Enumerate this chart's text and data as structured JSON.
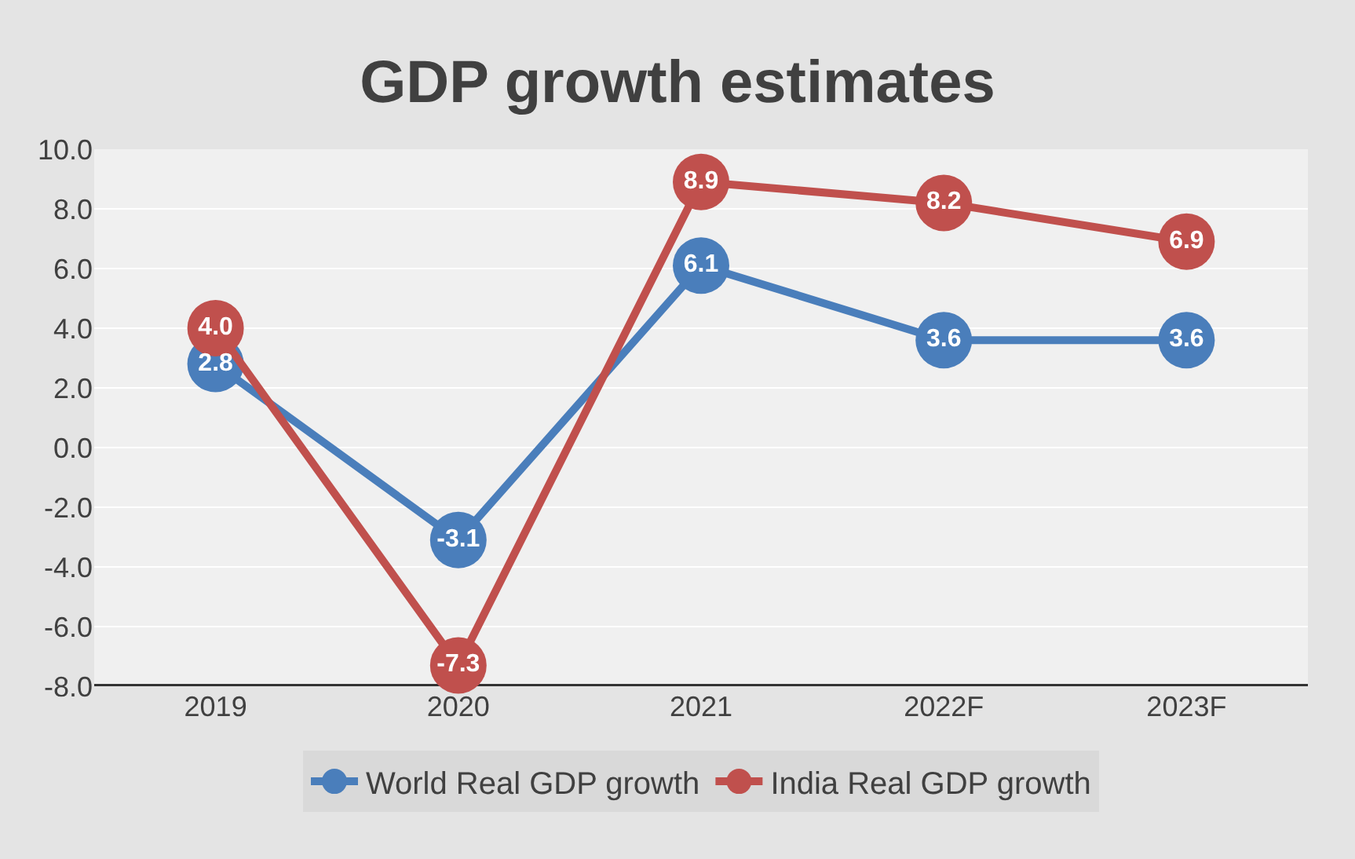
{
  "chart_data": {
    "type": "line",
    "title": "GDP growth estimates",
    "categories": [
      "2019",
      "2020",
      "2021",
      "2022F",
      "2023F"
    ],
    "series": [
      {
        "name": "World Real GDP growth",
        "color": "#4a7ebb",
        "values": [
          2.8,
          -3.1,
          6.1,
          3.6,
          3.6
        ],
        "value_labels": [
          "2.8",
          "-3.1",
          "6.1",
          "3.6",
          "3.6"
        ]
      },
      {
        "name": "India Real GDP growth",
        "color": "#c0504d",
        "values": [
          4.0,
          -7.3,
          8.9,
          8.2,
          6.9
        ],
        "value_labels": [
          "4.0",
          "-7.3",
          "8.9",
          "8.2",
          "6.9"
        ]
      }
    ],
    "ylim": [
      -8,
      10
    ],
    "yticks": [
      {
        "value": -8,
        "label": "-8.0"
      },
      {
        "value": -6,
        "label": "-6.0"
      },
      {
        "value": -4,
        "label": "-4.0"
      },
      {
        "value": -2,
        "label": "-2.0"
      },
      {
        "value": 0,
        "label": "0.0"
      },
      {
        "value": 2,
        "label": "2.0"
      },
      {
        "value": 4,
        "label": "4.0"
      },
      {
        "value": 6,
        "label": "6.0"
      },
      {
        "value": 8,
        "label": "8.0"
      },
      {
        "value": 10,
        "label": "10.0"
      }
    ],
    "grid": "y",
    "legend": "bottom",
    "marker": "circle",
    "line_style": "solid"
  }
}
